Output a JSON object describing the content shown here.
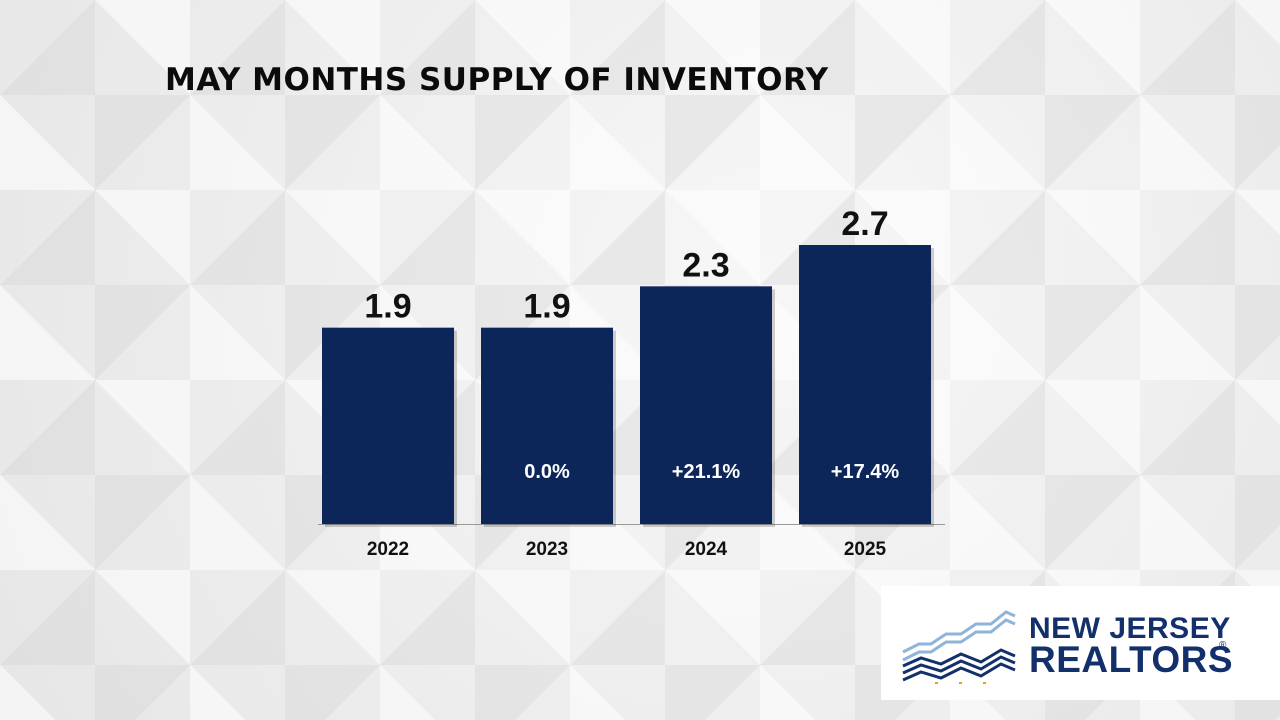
{
  "chart_data": {
    "type": "bar",
    "title": "MAY MONTHS SUPPLY OF INVENTORY",
    "categories": [
      "2022",
      "2023",
      "2024",
      "2025"
    ],
    "values": [
      1.9,
      1.9,
      2.3,
      2.7
    ],
    "value_labels": [
      "1.9",
      "1.9",
      "2.3",
      "2.7"
    ],
    "change_labels": [
      "",
      "0.0%",
      "+21.1%",
      "+17.4%"
    ],
    "ylim": [
      0,
      2.7
    ],
    "grid": false,
    "legend": "none",
    "colors": {
      "bar": "#0c2659",
      "change_text": "#ffffff",
      "value_text": "#111111"
    }
  },
  "logo": {
    "line1": "NEW JERSEY",
    "line2": "REALTORS",
    "registered_mark": "®",
    "colors": {
      "text": "#13306b",
      "accent_light": "#8fb4d9",
      "dots": "#e0a800"
    }
  }
}
